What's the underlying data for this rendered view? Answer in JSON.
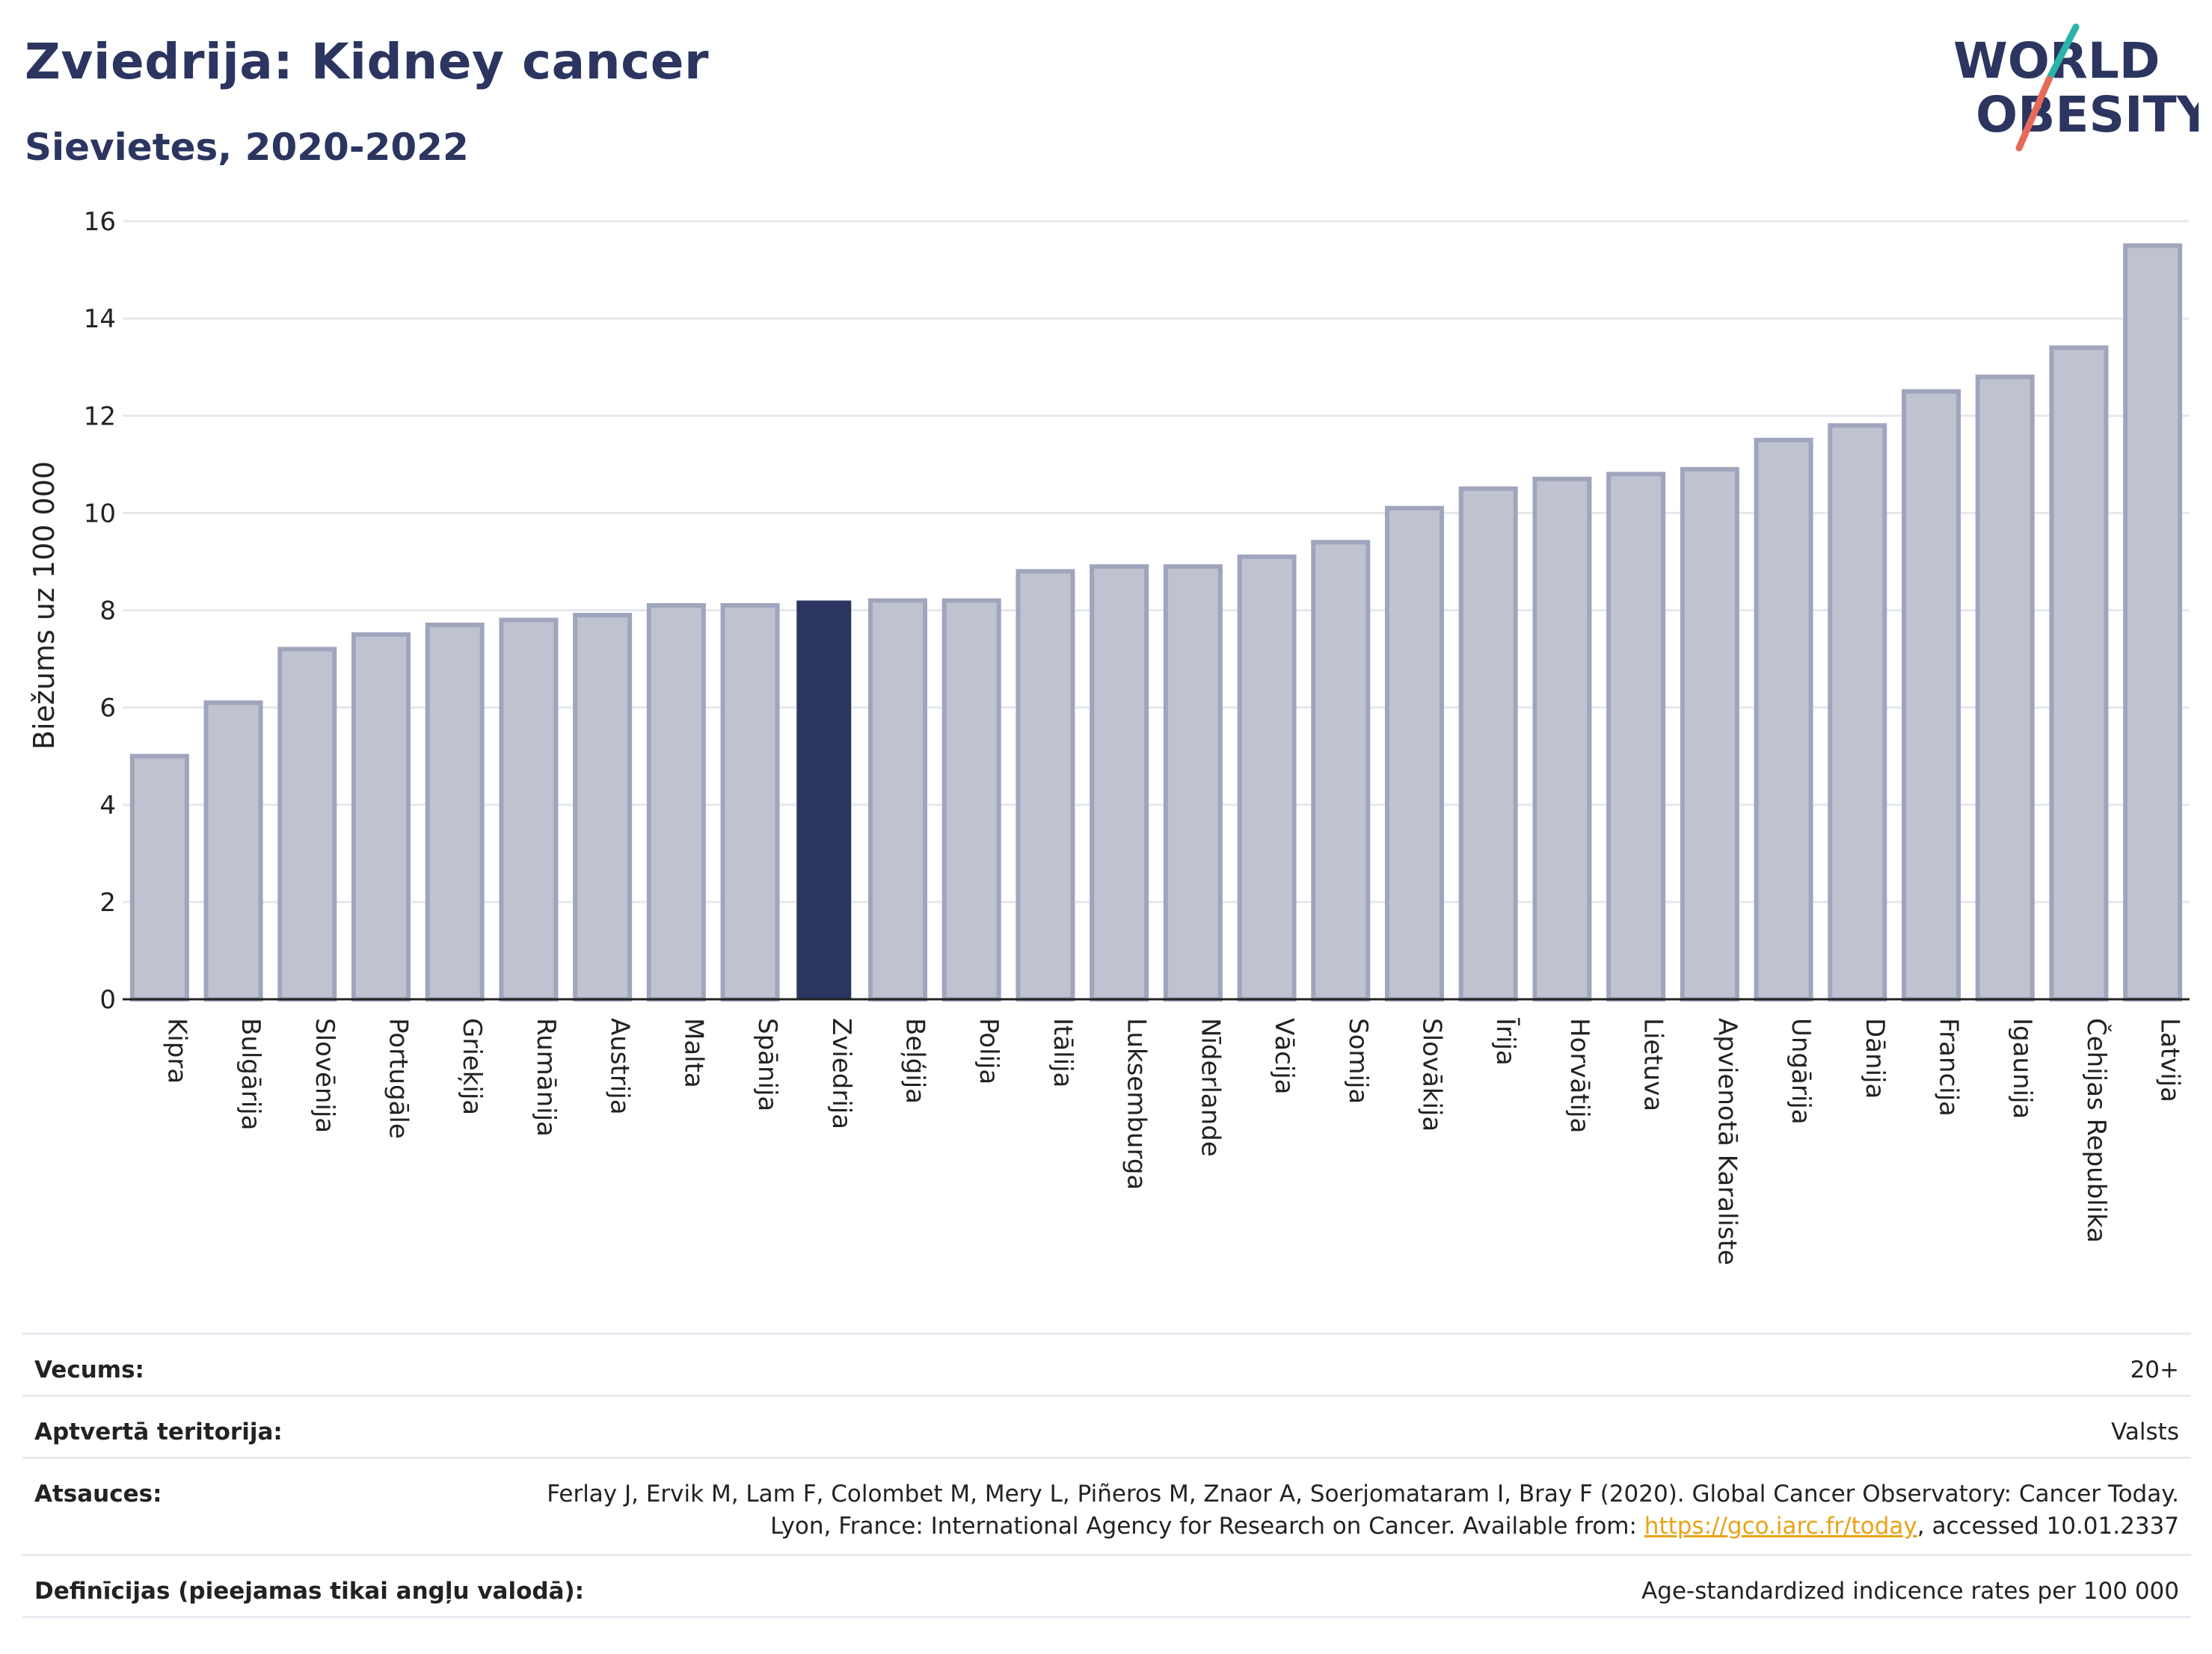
{
  "header": {
    "title": "Zviedrija: Kidney cancer",
    "subtitle": "Sievietes, 2020-2022"
  },
  "logo": {
    "line1": "WORLD",
    "line2": "OBESITY"
  },
  "colors": {
    "bar": "#bfc3d0",
    "bar_edge": "#9fa5bc",
    "highlight": "#2b3560",
    "title": "#2b3560",
    "grid": "#e6e8ee",
    "link": "#e8a317"
  },
  "chart_data": {
    "type": "bar",
    "ylabel": "Biežums uz 100 000",
    "ylim": [
      0,
      16
    ],
    "yticks": [
      0,
      2,
      4,
      6,
      8,
      10,
      12,
      14,
      16
    ],
    "grid": true,
    "highlight": "Zviedrija",
    "categories": [
      "Kipra",
      "Bulgārija",
      "Slovēnija",
      "Portugāle",
      "Grieķija",
      "Rumānija",
      "Austrija",
      "Malta",
      "Spānija",
      "Zviedrija",
      "Beļģija",
      "Polija",
      "Itālija",
      "Luksemburga",
      "Nīderlande",
      "Vācija",
      "Somija",
      "Slovākija",
      "Īrija",
      "Horvātija",
      "Lietuva",
      "Apvienotā Karaliste",
      "Ungārija",
      "Dānija",
      "Francija",
      "Igaunija",
      "Čehijas Republika",
      "Latvija"
    ],
    "values": [
      5.0,
      6.1,
      7.2,
      7.5,
      7.7,
      7.8,
      7.9,
      8.1,
      8.1,
      8.2,
      8.2,
      8.2,
      8.8,
      8.9,
      8.9,
      9.1,
      9.4,
      10.1,
      10.5,
      10.7,
      10.8,
      10.9,
      11.5,
      11.8,
      12.5,
      12.8,
      13.4,
      15.5
    ]
  },
  "meta": {
    "age_label": "Vecums:",
    "age_value": "20+",
    "territory_label": "Aptvertā teritorija:",
    "territory_value": "Valsts",
    "refs_label": "Atsauces:",
    "refs_text_1": "Ferlay J, Ervik M, Lam F, Colombet M, Mery L, Piñeros M, Znaor A, Soerjomataram I, Bray F (2020). Global Cancer Observatory: Cancer Today. Lyon, France: International Agency for Research on Cancer. Available from: ",
    "refs_link": "https://gco.iarc.fr/today",
    "refs_text_2": ", accessed 10.01.2337",
    "defs_label": "Definīcijas (pieejamas tikai angļu valodā):",
    "defs_value": "Age-standardized indicence rates per 100 000"
  }
}
